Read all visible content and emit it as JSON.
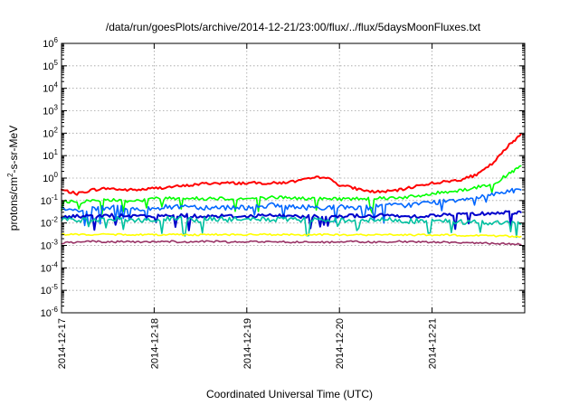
{
  "chart_data": {
    "type": "line",
    "title": "/data/run/goesPlots/archive/2014-12-21/23:00/flux/../flux/5daysMoonFluxes.txt",
    "xlabel": "Coordinated Universal Time (UTC)",
    "ylabel": "protons/cm²-s-sr-MeV",
    "ylabel_parts": {
      "pre": "protons/cm",
      "sup": "2",
      "post": "-s-sr-MeV"
    },
    "yscale": "log",
    "ylim": [
      1e-06,
      1000000.0
    ],
    "xlim": [
      "2014-12-17",
      "2014-12-22"
    ],
    "grid": true,
    "x_ticks": [
      {
        "x": "2014-12-17",
        "label": "2014-12-17"
      },
      {
        "x": "2014-12-18",
        "label": "2014-12-18"
      },
      {
        "x": "2014-12-19",
        "label": "2014-12-19"
      },
      {
        "x": "2014-12-20",
        "label": "2014-12-20"
      },
      {
        "x": "2014-12-21",
        "label": "2014-12-21"
      }
    ],
    "y_ticks": [
      {
        "value": 1e-06,
        "base": "10",
        "exp": "-6"
      },
      {
        "value": 1e-05,
        "base": "10",
        "exp": "-5"
      },
      {
        "value": 0.0001,
        "base": "10",
        "exp": "-4"
      },
      {
        "value": 0.001,
        "base": "10",
        "exp": "-3"
      },
      {
        "value": 0.01,
        "base": "10",
        "exp": "-2"
      },
      {
        "value": 0.1,
        "base": "10",
        "exp": "-1"
      },
      {
        "value": 1.0,
        "base": "10",
        "exp": "0"
      },
      {
        "value": 10.0,
        "base": "10",
        "exp": "1"
      },
      {
        "value": 100.0,
        "base": "10",
        "exp": "2"
      },
      {
        "value": 1000.0,
        "base": "10",
        "exp": "3"
      },
      {
        "value": 10000.0,
        "base": "10",
        "exp": "4"
      },
      {
        "value": 100000.0,
        "base": "10",
        "exp": "5"
      },
      {
        "value": 1000000.0,
        "base": "10",
        "exp": "6"
      }
    ],
    "x": [
      "2014-12-17T00:00",
      "2014-12-17T04:00",
      "2014-12-17T08:00",
      "2014-12-17T12:00",
      "2014-12-17T16:00",
      "2014-12-17T20:00",
      "2014-12-18T00:00",
      "2014-12-18T04:00",
      "2014-12-18T08:00",
      "2014-12-18T12:00",
      "2014-12-18T16:00",
      "2014-12-18T20:00",
      "2014-12-19T00:00",
      "2014-12-19T04:00",
      "2014-12-19T08:00",
      "2014-12-19T12:00",
      "2014-12-19T16:00",
      "2014-12-19T20:00",
      "2014-12-20T00:00",
      "2014-12-20T04:00",
      "2014-12-20T08:00",
      "2014-12-20T12:00",
      "2014-12-20T16:00",
      "2014-12-20T20:00",
      "2014-12-21T00:00",
      "2014-12-21T04:00",
      "2014-12-21T08:00",
      "2014-12-21T12:00",
      "2014-12-21T16:00",
      "2014-12-21T20:00",
      "2014-12-21T23:00"
    ],
    "series": [
      {
        "color": "#ff0000",
        "values": [
          0.3,
          0.2,
          0.3,
          0.35,
          0.3,
          0.3,
          0.35,
          0.4,
          0.45,
          0.55,
          0.6,
          0.6,
          0.6,
          0.6,
          0.6,
          0.7,
          0.9,
          1.2,
          0.5,
          0.35,
          0.25,
          0.25,
          0.3,
          0.45,
          0.6,
          0.7,
          0.9,
          1.5,
          5,
          30,
          90
        ]
      },
      {
        "color": "#00ff00",
        "values": [
          0.1,
          0.08,
          0.1,
          0.11,
          0.1,
          0.1,
          0.12,
          0.13,
          0.13,
          0.12,
          0.13,
          0.12,
          0.12,
          0.13,
          0.14,
          0.13,
          0.12,
          0.12,
          0.12,
          0.12,
          0.13,
          0.13,
          0.14,
          0.15,
          0.2,
          0.25,
          0.3,
          0.4,
          0.6,
          1.5,
          3.5
        ]
      },
      {
        "color": "#0066ff",
        "values": [
          0.04,
          0.035,
          0.04,
          0.05,
          0.045,
          0.04,
          0.05,
          0.05,
          0.06,
          0.05,
          0.05,
          0.05,
          0.05,
          0.06,
          0.06,
          0.05,
          0.05,
          0.05,
          0.05,
          0.05,
          0.05,
          0.06,
          0.06,
          0.07,
          0.08,
          0.1,
          0.12,
          0.15,
          0.2,
          0.28,
          0.3
        ]
      },
      {
        "color": "#0000cc",
        "values": [
          0.018,
          0.02,
          0.02,
          0.022,
          0.02,
          0.02,
          0.02,
          0.021,
          0.022,
          0.02,
          0.021,
          0.02,
          0.02,
          0.022,
          0.021,
          0.02,
          0.02,
          0.02,
          0.02,
          0.021,
          0.02,
          0.022,
          0.02,
          0.02,
          0.022,
          0.023,
          0.025,
          0.026,
          0.028,
          0.03,
          0.03
        ]
      },
      {
        "color": "#00c0a0",
        "values": [
          0.015,
          0.013,
          0.014,
          0.015,
          0.014,
          0.013,
          0.014,
          0.015,
          0.014,
          0.014,
          0.015,
          0.014,
          0.014,
          0.015,
          0.014,
          0.014,
          0.013,
          0.014,
          0.013,
          0.014,
          0.013,
          0.014,
          0.013,
          0.012,
          0.012,
          0.012,
          0.011,
          0.011,
          0.01,
          0.01,
          0.009
        ]
      },
      {
        "color": "#ffff00",
        "values": [
          0.0032,
          0.003,
          0.0031,
          0.003,
          0.0031,
          0.003,
          0.003,
          0.0031,
          0.003,
          0.003,
          0.0031,
          0.003,
          0.003,
          0.0031,
          0.003,
          0.003,
          0.003,
          0.003,
          0.003,
          0.003,
          0.0029,
          0.003,
          0.003,
          0.0029,
          0.0029,
          0.0029,
          0.0028,
          0.0028,
          0.0027,
          0.0026,
          0.0025
        ]
      },
      {
        "color": "#993366",
        "values": [
          0.0013,
          0.0014,
          0.0015,
          0.0014,
          0.0015,
          0.0014,
          0.0015,
          0.0015,
          0.0014,
          0.0015,
          0.0015,
          0.0014,
          0.0015,
          0.0014,
          0.0015,
          0.0014,
          0.0015,
          0.0014,
          0.0014,
          0.0015,
          0.0014,
          0.0014,
          0.0015,
          0.0014,
          0.0014,
          0.0014,
          0.0013,
          0.0013,
          0.0012,
          0.0012,
          0.0011
        ]
      }
    ]
  }
}
